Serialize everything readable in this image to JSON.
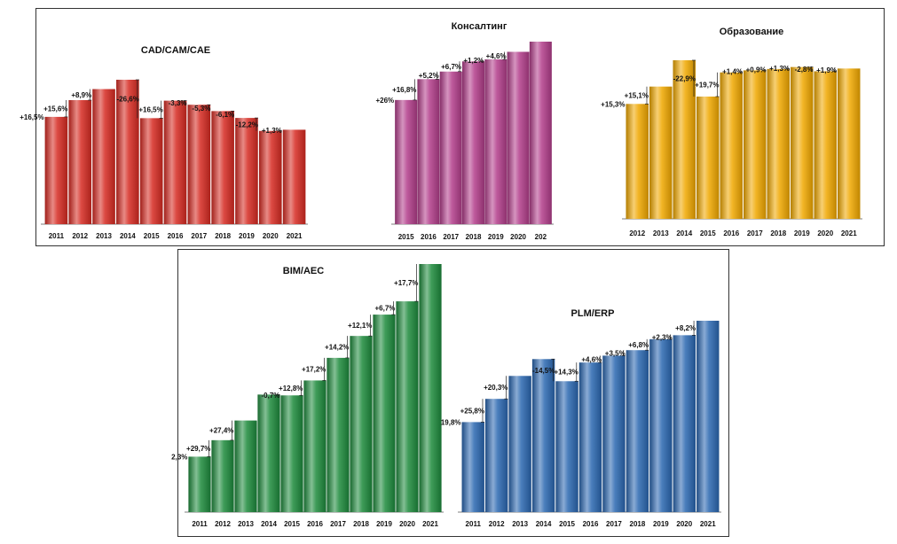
{
  "chart_data": [
    {
      "id": "cad",
      "type": "bar",
      "title": "CAD/CAM/CAE",
      "categories": [
        "2011",
        "2012",
        "2013",
        "2014",
        "2015",
        "2016",
        "2017",
        "2018",
        "2019",
        "2020",
        "2021"
      ],
      "values": [
        100,
        115.6,
        125.9,
        134.6,
        98.8,
        115.1,
        111.3,
        105.4,
        99.0,
        86.9,
        88.0
      ],
      "change_labels": [
        "+16,5%",
        "+15,6%",
        "+8,9%",
        "",
        "-26,6%",
        "+16,5%",
        "-3,3%",
        "-5,3%",
        "-6,1%",
        "-12,2%",
        "+1,3%"
      ],
      "color": "#d62a22"
    },
    {
      "id": "consulting",
      "type": "bar",
      "title": "Консалтинг",
      "categories": [
        "2015",
        "2016",
        "2017",
        "2018",
        "2019",
        "2020",
        "202"
      ],
      "values": [
        100,
        116.8,
        122.9,
        131.1,
        132.7,
        138.8,
        147.0
      ],
      "change_labels": [
        "+26%",
        "+16,8%",
        "+5,2%",
        "+6,7%",
        "+1,2%",
        "+4,6%",
        ""
      ],
      "color": "#b23d8a"
    },
    {
      "id": "education",
      "type": "bar",
      "title": "Образование",
      "categories": [
        "2012",
        "2013",
        "2014",
        "2015",
        "2016",
        "2017",
        "2018",
        "2019",
        "2020",
        "2021"
      ],
      "values": [
        100,
        115.1,
        138.0,
        106.4,
        127.4,
        129.2,
        130.4,
        132.1,
        128.4,
        130.8
      ],
      "change_labels": [
        "+15,3%",
        "+15,1%",
        "",
        "-22,9%",
        "+19,7%",
        "+1,4%",
        "+0,9%",
        "+1,3%",
        "-2,8%",
        "+1,9%"
      ],
      "color": "#f0a800"
    },
    {
      "id": "bim",
      "type": "bar",
      "title": "BIM/AEC",
      "categories": [
        "2011",
        "2012",
        "2013",
        "2014",
        "2015",
        "2016",
        "2017",
        "2018",
        "2019",
        "2020",
        "2021"
      ],
      "values": [
        100,
        129.7,
        165.2,
        212.0,
        210.5,
        237.4,
        278.2,
        317.7,
        356.2,
        380.1,
        447.4
      ],
      "change_labels": [
        "2,3%",
        "+29,7%",
        "+27,4%",
        "",
        "-0,7%",
        "+12,8%",
        "+17,2%",
        "+14,2%",
        "+12,1%",
        "+6,7%",
        "+17,7%"
      ],
      "color": "#1d8a3c"
    },
    {
      "id": "plm",
      "type": "bar",
      "title": "PLM/ERP",
      "categories": [
        "2011",
        "2012",
        "2013",
        "2014",
        "2015",
        "2016",
        "2017",
        "2018",
        "2019",
        "2020",
        "2021"
      ],
      "values": [
        100,
        125.8,
        151.3,
        170.0,
        145.4,
        166.2,
        173.8,
        179.9,
        192.1,
        196.5,
        212.6
      ],
      "change_labels": [
        "19,8%",
        "+25,8%",
        "+20,3%",
        "",
        "-14,5%",
        "+14,3%",
        "+4,6%",
        "+3,5%",
        "+6,8%",
        "+2,3%",
        "+8,2%"
      ],
      "color": "#2a67b0"
    }
  ]
}
